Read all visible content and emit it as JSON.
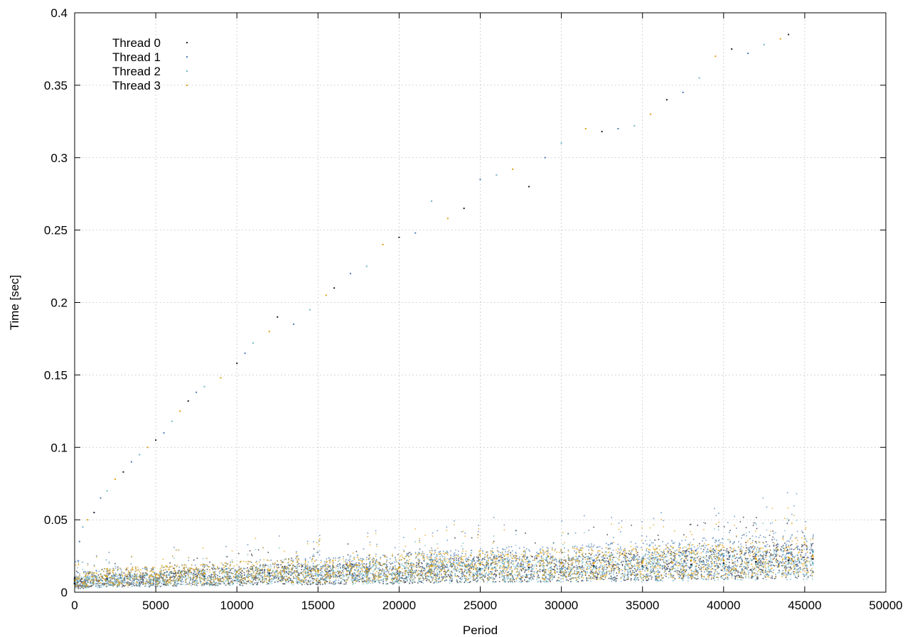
{
  "chart_data": {
    "type": "scatter",
    "title": "",
    "xlabel": "Period",
    "ylabel": "Time [sec]",
    "xlim": [
      0,
      50000
    ],
    "ylim": [
      0,
      0.4
    ],
    "x_ticks": [
      0,
      5000,
      10000,
      15000,
      20000,
      25000,
      30000,
      35000,
      40000,
      45000,
      50000
    ],
    "y_ticks": [
      0,
      0.05,
      0.1,
      0.15,
      0.2,
      0.25,
      0.3,
      0.35,
      0.4
    ],
    "x_tick_labels": [
      "0",
      "5000",
      "10000",
      "15000",
      "20000",
      "25000",
      "30000",
      "35000",
      "40000",
      "45000",
      "50000"
    ],
    "y_tick_labels": [
      "0",
      "0.05",
      "0.1",
      "0.15",
      "0.2",
      "0.25",
      "0.3",
      "0.35",
      "0.4"
    ],
    "grid": true,
    "legend_position": "top-left",
    "series": [
      {
        "name": "Thread 0",
        "color": "#1d1d30",
        "points": [
          [
            0,
            0.006
          ],
          [
            2000,
            0.009
          ],
          [
            5000,
            0.009
          ],
          [
            8000,
            0.011
          ],
          [
            10000,
            0.011
          ],
          [
            12000,
            0.013
          ],
          [
            15000,
            0.012
          ],
          [
            18000,
            0.014
          ],
          [
            20000,
            0.013
          ],
          [
            22000,
            0.015
          ],
          [
            25000,
            0.016
          ],
          [
            28000,
            0.017
          ],
          [
            30000,
            0.016
          ],
          [
            32000,
            0.018
          ],
          [
            35000,
            0.018
          ],
          [
            38000,
            0.019
          ],
          [
            40000,
            0.02
          ],
          [
            42000,
            0.021
          ],
          [
            44000,
            0.022
          ],
          [
            45500,
            0.023
          ]
        ]
      },
      {
        "name": "Thread 1",
        "color": "#4a7fb5",
        "points": [
          [
            0,
            0.009
          ],
          [
            2000,
            0.011
          ],
          [
            5000,
            0.012
          ],
          [
            8000,
            0.013
          ],
          [
            10000,
            0.014
          ],
          [
            12000,
            0.015
          ],
          [
            15000,
            0.016
          ],
          [
            18000,
            0.017
          ],
          [
            20000,
            0.017
          ],
          [
            22000,
            0.019
          ],
          [
            25000,
            0.02
          ],
          [
            28000,
            0.021
          ],
          [
            30000,
            0.02
          ],
          [
            32000,
            0.022
          ],
          [
            35000,
            0.023
          ],
          [
            38000,
            0.024
          ],
          [
            40000,
            0.025
          ],
          [
            42000,
            0.026
          ],
          [
            44000,
            0.027
          ],
          [
            45500,
            0.028
          ]
        ]
      },
      {
        "name": "Thread 2",
        "color": "#6fb6c4",
        "points": [
          [
            0,
            0.007
          ],
          [
            2000,
            0.008
          ],
          [
            5000,
            0.009
          ],
          [
            8000,
            0.01
          ],
          [
            10000,
            0.011
          ],
          [
            12000,
            0.012
          ],
          [
            15000,
            0.012
          ],
          [
            18000,
            0.013
          ],
          [
            20000,
            0.013
          ],
          [
            22000,
            0.015
          ],
          [
            25000,
            0.015
          ],
          [
            28000,
            0.016
          ],
          [
            30000,
            0.016
          ],
          [
            32000,
            0.017
          ],
          [
            35000,
            0.017
          ],
          [
            38000,
            0.018
          ],
          [
            40000,
            0.019
          ],
          [
            42000,
            0.019
          ],
          [
            44000,
            0.02
          ],
          [
            45500,
            0.02
          ]
        ]
      },
      {
        "name": "Thread 3",
        "color": "#e0a010",
        "points": [
          [
            0,
            0.008
          ],
          [
            2000,
            0.011
          ],
          [
            5000,
            0.012
          ],
          [
            8000,
            0.013
          ],
          [
            10000,
            0.014
          ],
          [
            12000,
            0.015
          ],
          [
            15000,
            0.015
          ],
          [
            18000,
            0.016
          ],
          [
            20000,
            0.017
          ],
          [
            22000,
            0.018
          ],
          [
            25000,
            0.019
          ],
          [
            28000,
            0.019
          ],
          [
            30000,
            0.02
          ],
          [
            32000,
            0.02
          ],
          [
            35000,
            0.021
          ],
          [
            38000,
            0.022
          ],
          [
            40000,
            0.022
          ],
          [
            42000,
            0.023
          ],
          [
            44000,
            0.024
          ],
          [
            45500,
            0.025
          ]
        ]
      }
    ],
    "outliers": [
      [
        0,
        0.01
      ],
      [
        300,
        0.035
      ],
      [
        500,
        0.045
      ],
      [
        800,
        0.05
      ],
      [
        1200,
        0.055
      ],
      [
        1600,
        0.065
      ],
      [
        2000,
        0.07
      ],
      [
        2500,
        0.078
      ],
      [
        3000,
        0.083
      ],
      [
        3500,
        0.09
      ],
      [
        4000,
        0.095
      ],
      [
        4500,
        0.1
      ],
      [
        5000,
        0.105
      ],
      [
        5500,
        0.11
      ],
      [
        6000,
        0.118
      ],
      [
        6500,
        0.125
      ],
      [
        7000,
        0.132
      ],
      [
        7500,
        0.138
      ],
      [
        8000,
        0.142
      ],
      [
        9000,
        0.148
      ],
      [
        10000,
        0.158
      ],
      [
        10500,
        0.165
      ],
      [
        11000,
        0.172
      ],
      [
        12000,
        0.18
      ],
      [
        12500,
        0.19
      ],
      [
        13500,
        0.185
      ],
      [
        14500,
        0.195
      ],
      [
        15500,
        0.205
      ],
      [
        16000,
        0.21
      ],
      [
        17000,
        0.22
      ],
      [
        18000,
        0.225
      ],
      [
        19000,
        0.24
      ],
      [
        20000,
        0.245
      ],
      [
        21000,
        0.248
      ],
      [
        22000,
        0.27
      ],
      [
        23000,
        0.258
      ],
      [
        24000,
        0.265
      ],
      [
        25000,
        0.285
      ],
      [
        26000,
        0.288
      ],
      [
        27000,
        0.292
      ],
      [
        28000,
        0.28
      ],
      [
        29000,
        0.3
      ],
      [
        30000,
        0.31
      ],
      [
        31500,
        0.32
      ],
      [
        32500,
        0.318
      ],
      [
        33500,
        0.32
      ],
      [
        34500,
        0.322
      ],
      [
        35500,
        0.33
      ],
      [
        36500,
        0.34
      ],
      [
        37500,
        0.345
      ],
      [
        38500,
        0.355
      ],
      [
        39500,
        0.37
      ],
      [
        40500,
        0.375
      ],
      [
        41500,
        0.372
      ],
      [
        42500,
        0.378
      ],
      [
        43500,
        0.382
      ],
      [
        44000,
        0.385
      ]
    ],
    "colors": {
      "grid": "#c8c8c8",
      "axis": "#000000"
    }
  }
}
